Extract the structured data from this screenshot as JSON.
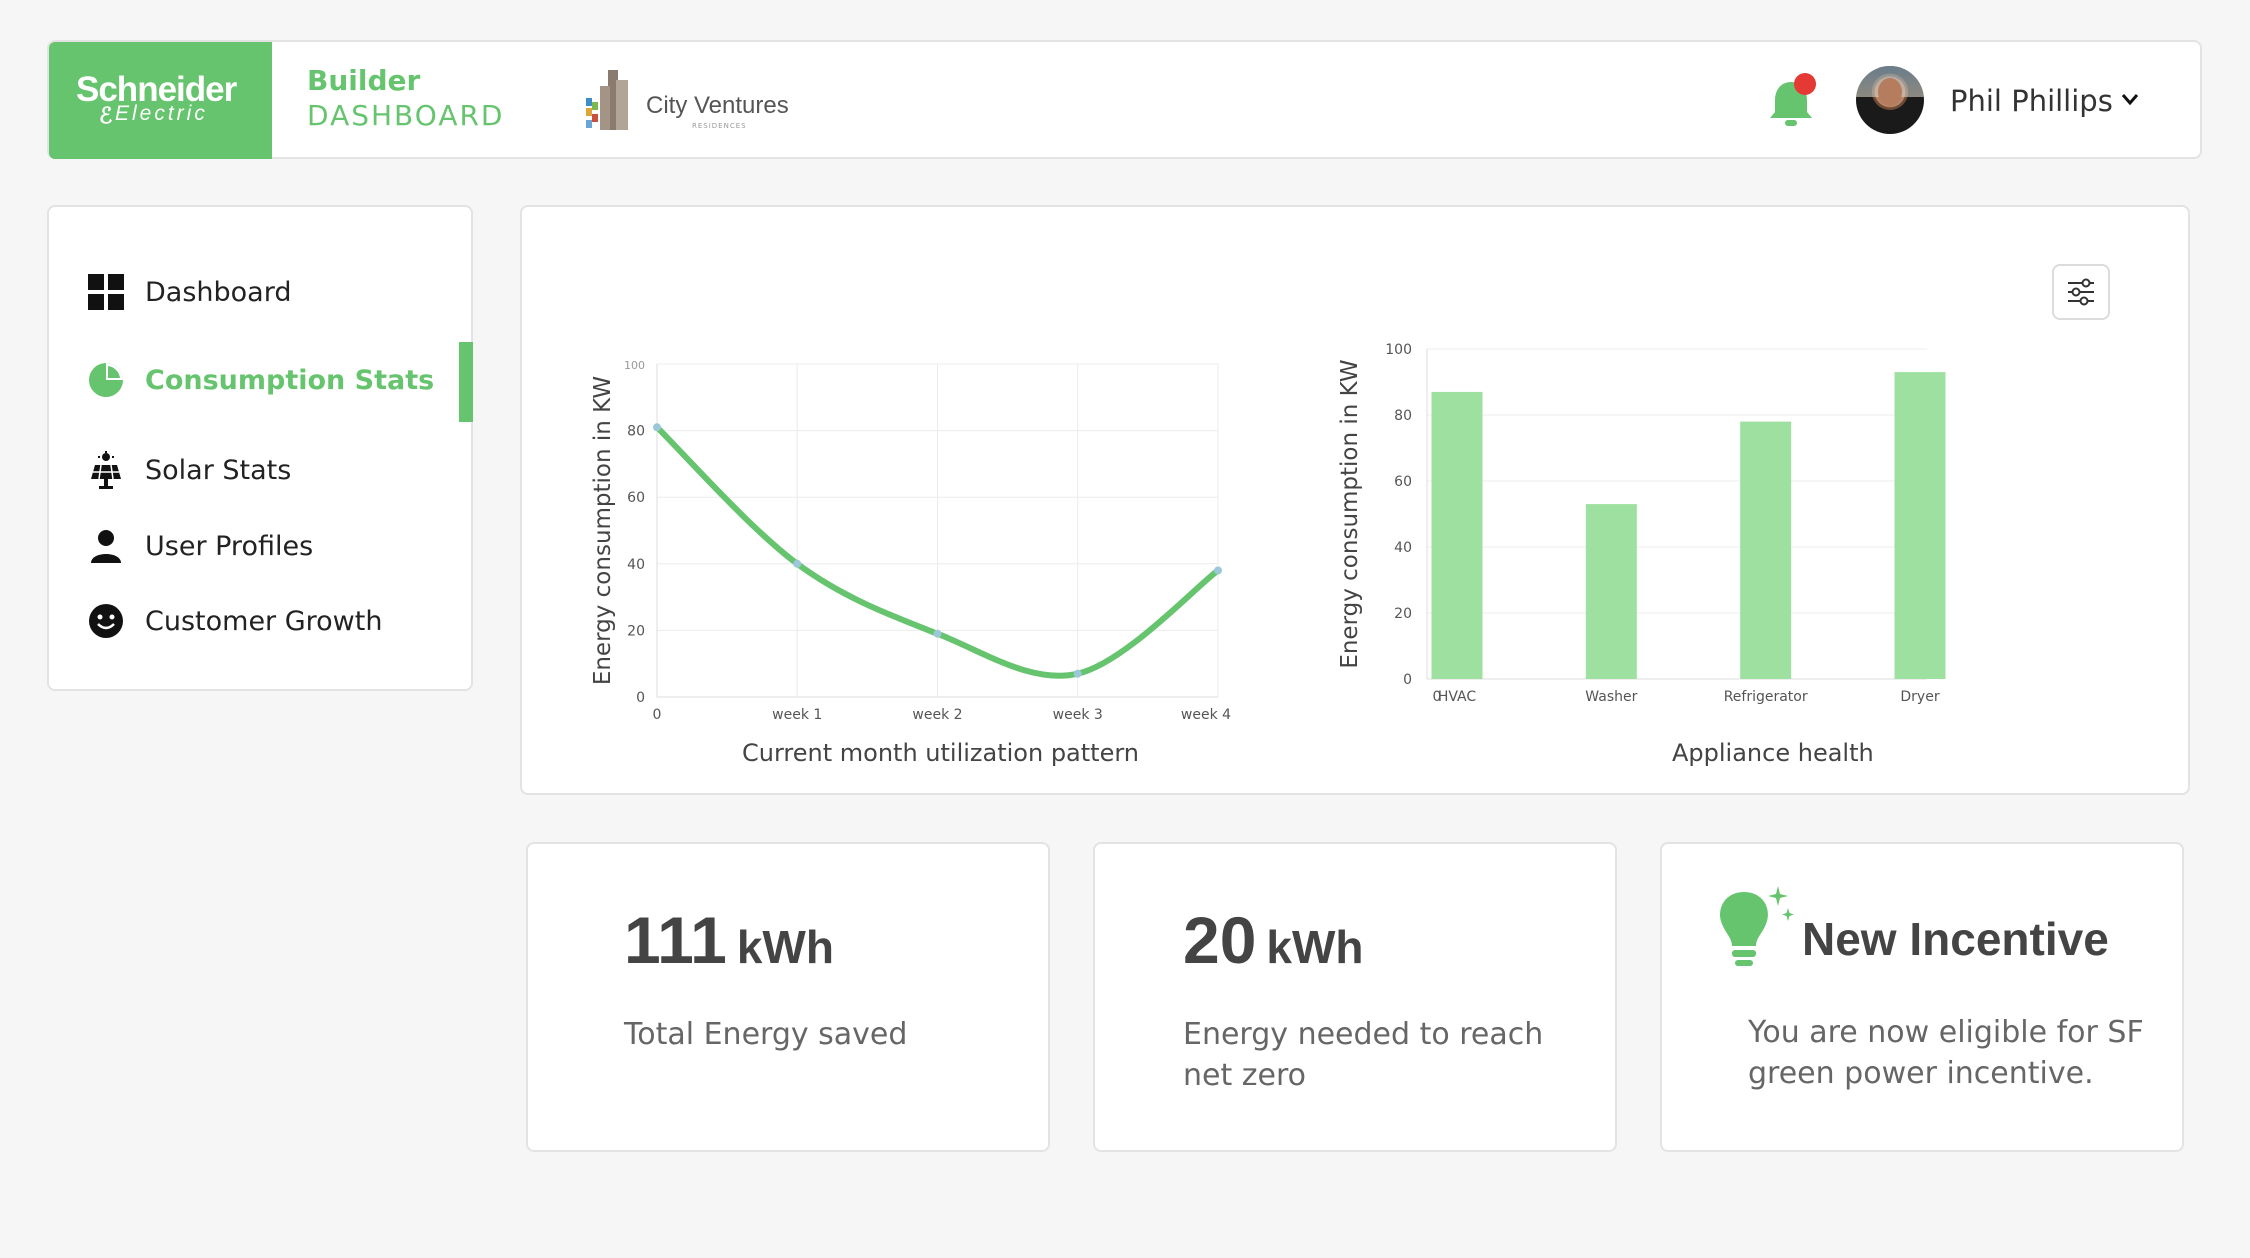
{
  "brand": {
    "name": "Schneider",
    "sub": "Electric"
  },
  "app_title": {
    "line1": "Builder",
    "line2": "DASHBOARD"
  },
  "partner_logo": {
    "name": "City Ventures",
    "sub": "RESIDENCES"
  },
  "header": {
    "user_name": "Phil Phillips",
    "has_notification": true
  },
  "colors": {
    "accent": "#66c46e",
    "bar": "#9ee0a0",
    "notification": "#e53935"
  },
  "sidebar": {
    "items": [
      {
        "label": "Dashboard",
        "icon": "grid-icon",
        "active": false
      },
      {
        "label": "Consumption Stats",
        "icon": "pie-chart-icon",
        "active": true
      },
      {
        "label": "Solar Stats",
        "icon": "solar-panel-icon",
        "active": false
      },
      {
        "label": "User Profiles",
        "icon": "person-icon",
        "active": false
      },
      {
        "label": "Customer Growth",
        "icon": "smiley-icon",
        "active": false
      }
    ]
  },
  "chart_data": [
    {
      "type": "line",
      "title": "Current month utilization pattern",
      "ylabel": "Energy consumption in KW",
      "xlabel": "",
      "categories": [
        "0",
        "week 1",
        "week 2",
        "week 3",
        "week 4"
      ],
      "values": [
        81,
        40,
        19,
        7,
        38
      ],
      "ylim": [
        0,
        100
      ],
      "yticks": [
        0,
        20,
        40,
        60,
        80,
        100
      ],
      "grid": true
    },
    {
      "type": "bar",
      "title": "Appliance health",
      "ylabel": "Energy consumption in KW",
      "xlabel": "",
      "origin_label": "0",
      "categories": [
        "HVAC",
        "Washer",
        "Refrigerator",
        "Dryer"
      ],
      "values": [
        87,
        53,
        78,
        93
      ],
      "ylim": [
        0,
        100
      ],
      "yticks": [
        0,
        20,
        40,
        60,
        80,
        100
      ],
      "grid": true
    }
  ],
  "cards": [
    {
      "value": "111",
      "unit": "kWh",
      "text": "Total Energy saved"
    },
    {
      "value": "20",
      "unit": "kWh",
      "text": "Energy needed to reach net zero"
    },
    {
      "title": "New Incentive",
      "text": "You are now eligible for SF green power incentive."
    }
  ]
}
